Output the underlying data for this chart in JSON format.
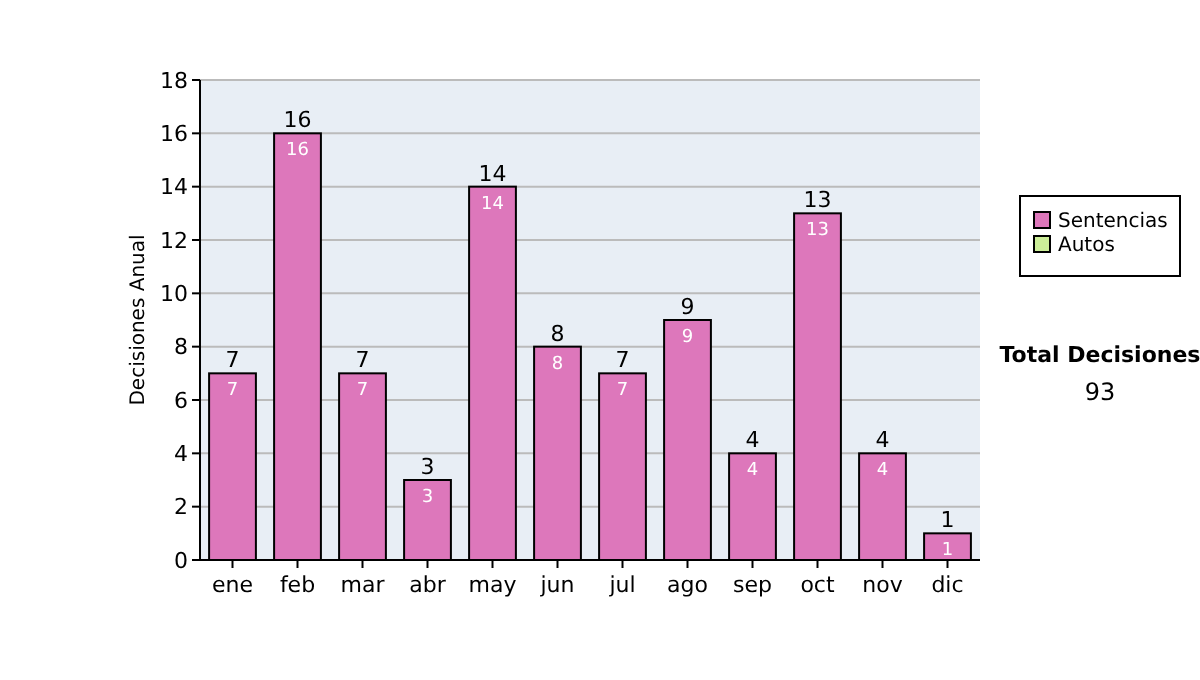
{
  "chart_data": {
    "type": "bar",
    "stacked": true,
    "categories": [
      "ene",
      "feb",
      "mar",
      "abr",
      "may",
      "jun",
      "jul",
      "ago",
      "sep",
      "oct",
      "nov",
      "dic"
    ],
    "series": [
      {
        "name": "Sentencias",
        "color": "#dd77bb",
        "values": [
          7,
          16,
          7,
          3,
          14,
          8,
          7,
          9,
          4,
          13,
          4,
          1
        ],
        "value_labels": [
          "7",
          "16",
          "7",
          "3",
          "14",
          "8",
          "7",
          "9",
          "4",
          "13",
          "4",
          "1"
        ]
      },
      {
        "name": "Autos",
        "color": "#ccee99",
        "values": [
          0,
          0,
          0,
          0,
          0,
          0,
          0,
          0,
          0,
          0,
          0,
          0
        ]
      }
    ],
    "totals": [
      "7",
      "16",
      "7",
      "3",
      "14",
      "8",
      "7",
      "9",
      "4",
      "13",
      "4",
      "1"
    ],
    "ylabel": "Decisiones Anual",
    "ylim": [
      0,
      18
    ],
    "yticks": [
      0,
      2,
      4,
      6,
      8,
      10,
      12,
      14,
      16,
      18
    ],
    "grid": "y",
    "legend": "right",
    "annotations": [
      "Total Decisiones",
      "93"
    ]
  }
}
